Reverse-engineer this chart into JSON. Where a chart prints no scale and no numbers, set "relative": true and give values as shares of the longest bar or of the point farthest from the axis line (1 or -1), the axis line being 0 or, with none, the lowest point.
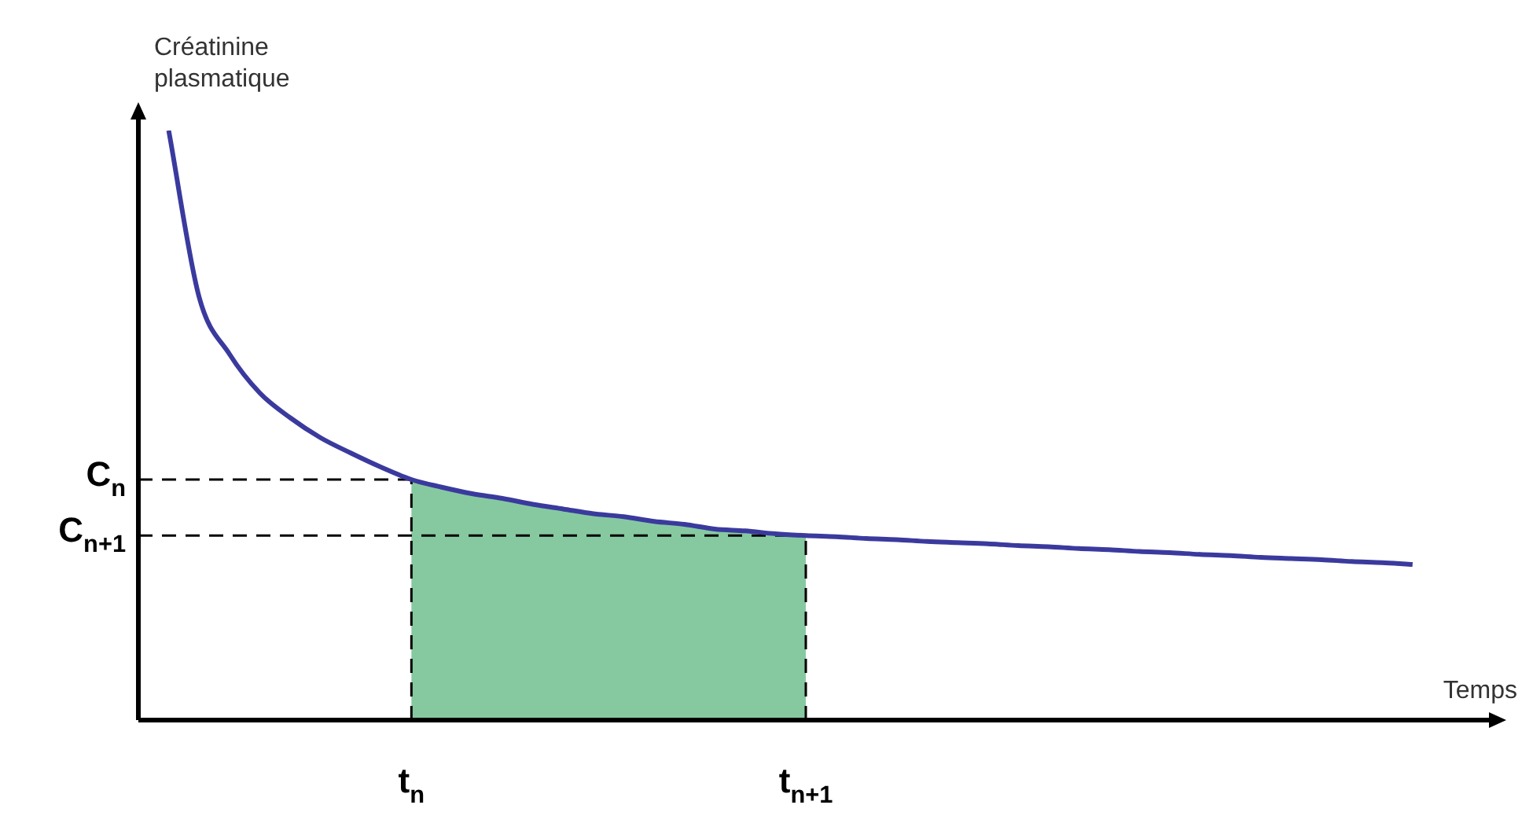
{
  "chart_data": {
    "type": "line",
    "relative": true,
    "ylabel": "Créatinine plasmatique",
    "xlabel": "Temps",
    "categories": [
      null,
      null,
      null,
      null,
      null,
      null,
      null,
      null,
      null,
      "t$_{n}$",
      null,
      null,
      null,
      null,
      null,
      null,
      null,
      null,
      null,
      null,
      null,
      null,
      "t$_{n+1}$",
      null,
      null,
      null,
      null,
      null,
      null,
      null,
      null,
      null,
      null,
      null,
      null,
      null,
      null,
      null,
      null,
      null,
      null,
      null,
      null,
      null,
      null
    ],
    "series": [
      {
        "color": "#3a3a9e",
        "values": [
          null,
          1,
          0.718,
          0.621,
          0.555,
          0.513,
          0.479,
          0.453,
          0.429,
          0.408,
          0.395,
          0.384,
          0.376,
          0.366,
          0.358,
          0.35,
          0.345,
          0.337,
          0.332,
          0.324,
          0.321,
          0.316,
          0.313,
          0.311,
          0.308,
          0.306,
          0.303,
          0.301,
          0.299,
          0.296,
          0.294,
          0.291,
          0.289,
          0.286,
          0.284,
          0.281,
          0.279,
          0.276,
          0.274,
          0.272,
          0.269,
          0.267,
          0.264,
          null,
          null
        ]
      }
    ],
    "ref_lines": [
      {
        "axis": "y",
        "value": 0.408,
        "label": "C$_{n}$",
        "line_style": "dashed"
      },
      {
        "axis": "y",
        "value": 0.313,
        "label": "C$_{n+1}$",
        "line_style": "dashed"
      },
      {
        "axis": "x",
        "value": "t$_{n}$",
        "line_style": "dashed"
      },
      {
        "axis": "x",
        "value": "t$_{n+1}$",
        "line_style": "dashed"
      }
    ],
    "bands": [
      {
        "axis": "x",
        "from": "t$_{n}$",
        "to": "t$_{n+1}$",
        "color": "#86c9a0"
      }
    ],
    "legend": false,
    "marker": "none",
    "line_style": "solid"
  }
}
